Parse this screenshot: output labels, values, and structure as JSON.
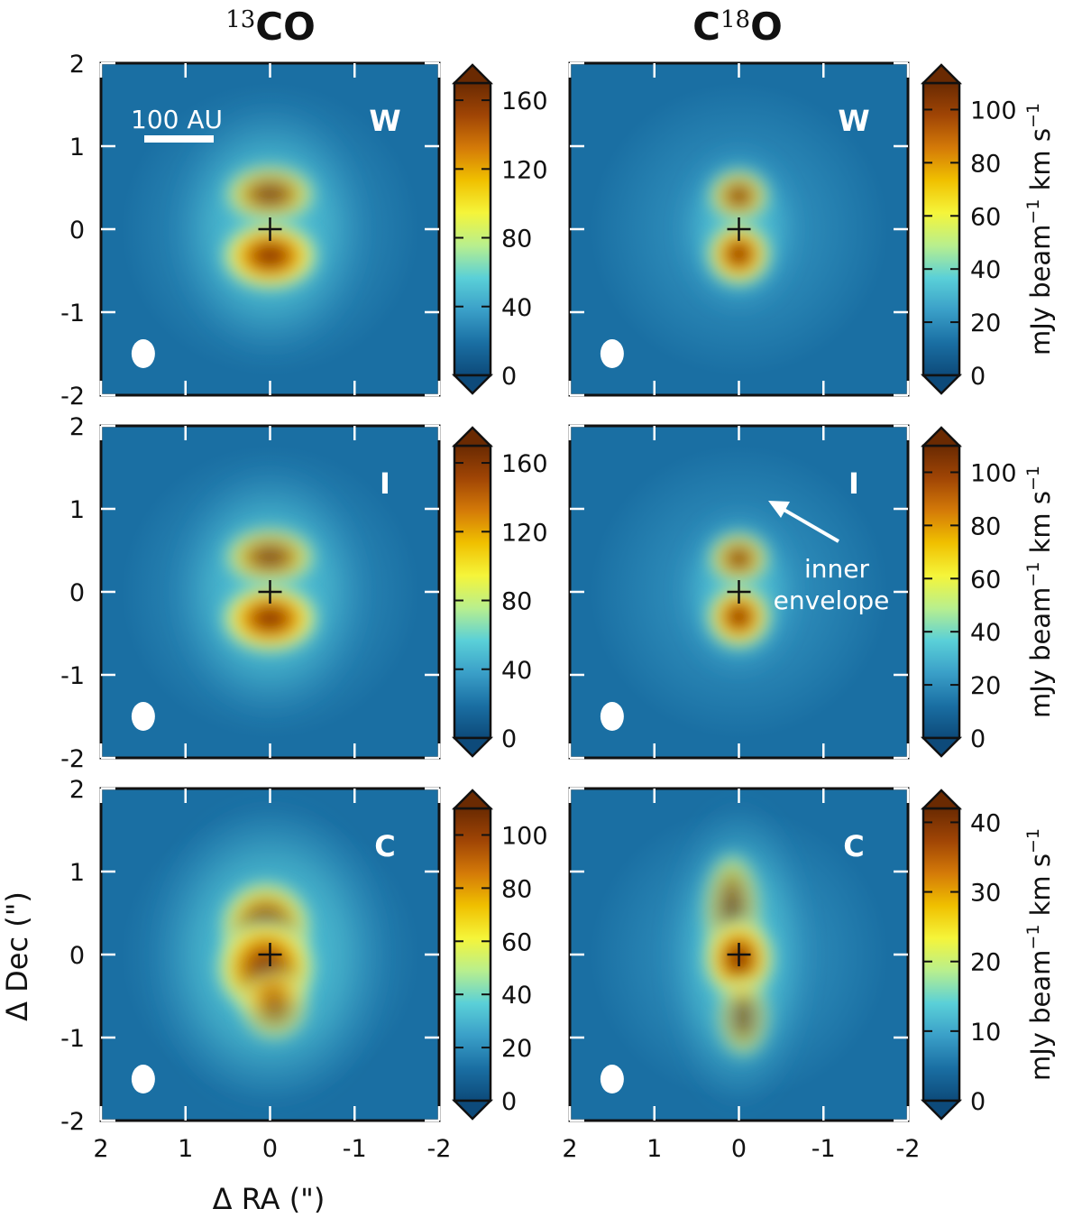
{
  "chart_data": {
    "type": "heatmap",
    "column_titles": [
      {
        "sup": "13",
        "main": "CO"
      },
      {
        "pre": "C",
        "sup": "18",
        "main": "O"
      }
    ],
    "xlabel": "Δ RA (\")",
    "ylabel": "Δ Dec (\")",
    "colorbar_label": {
      "main": "mJy beam",
      "sup": "−1",
      "tail": " km s",
      "sup2": "−1"
    },
    "xlim": [
      2,
      -2
    ],
    "ylim": [
      -2,
      2
    ],
    "x_ticks": [
      2,
      1,
      0,
      -1,
      -2
    ],
    "x_tick_labels": [
      "2",
      "1",
      "0",
      "-1",
      "-2"
    ],
    "y_ticks": [
      2,
      1,
      0,
      -1,
      -2
    ],
    "y_tick_labels": [
      "2",
      "1",
      "0",
      "-1",
      "-2"
    ],
    "scale_bar_label": "100 AU",
    "annotation": {
      "line1": "inner",
      "line2": "envelope"
    },
    "colormap": [
      "#0d4a7a",
      "#1a6fa3",
      "#3a9fc8",
      "#5ad0d8",
      "#b8ef8e",
      "#f5f53a",
      "#f0c000",
      "#d47a08",
      "#a04505",
      "#6a2a02"
    ],
    "panels": [
      {
        "row": 0,
        "col": 0,
        "model": "W",
        "peak": 170,
        "cbar_ticks": [
          0,
          40,
          80,
          120,
          160
        ],
        "cbar_tick_labels": [
          "0",
          "40",
          "80",
          "120",
          "160"
        ],
        "shape": "hourglass"
      },
      {
        "row": 0,
        "col": 1,
        "model": "W",
        "peak": 110,
        "cbar_ticks": [
          0,
          20,
          40,
          60,
          80,
          100
        ],
        "cbar_tick_labels": [
          "0",
          "20",
          "40",
          "60",
          "80",
          "100"
        ],
        "shape": "hourglass-narrow"
      },
      {
        "row": 1,
        "col": 0,
        "model": "I",
        "peak": 170,
        "cbar_ticks": [
          0,
          40,
          80,
          120,
          160
        ],
        "cbar_tick_labels": [
          "0",
          "40",
          "80",
          "120",
          "160"
        ],
        "shape": "hourglass"
      },
      {
        "row": 1,
        "col": 1,
        "model": "I",
        "peak": 110,
        "cbar_ticks": [
          0,
          20,
          40,
          60,
          80,
          100
        ],
        "cbar_tick_labels": [
          "0",
          "20",
          "40",
          "60",
          "80",
          "100"
        ],
        "shape": "hourglass-narrow"
      },
      {
        "row": 2,
        "col": 0,
        "model": "C",
        "peak": 110,
        "cbar_ticks": [
          0,
          20,
          40,
          60,
          80,
          100
        ],
        "cbar_tick_labels": [
          "0",
          "20",
          "40",
          "60",
          "80",
          "100"
        ],
        "shape": "blob"
      },
      {
        "row": 2,
        "col": 1,
        "model": "C",
        "peak": 42,
        "cbar_ticks": [
          0,
          10,
          20,
          30,
          40
        ],
        "cbar_tick_labels": [
          "0",
          "10",
          "20",
          "30",
          "40"
        ],
        "shape": "elongated"
      }
    ]
  }
}
